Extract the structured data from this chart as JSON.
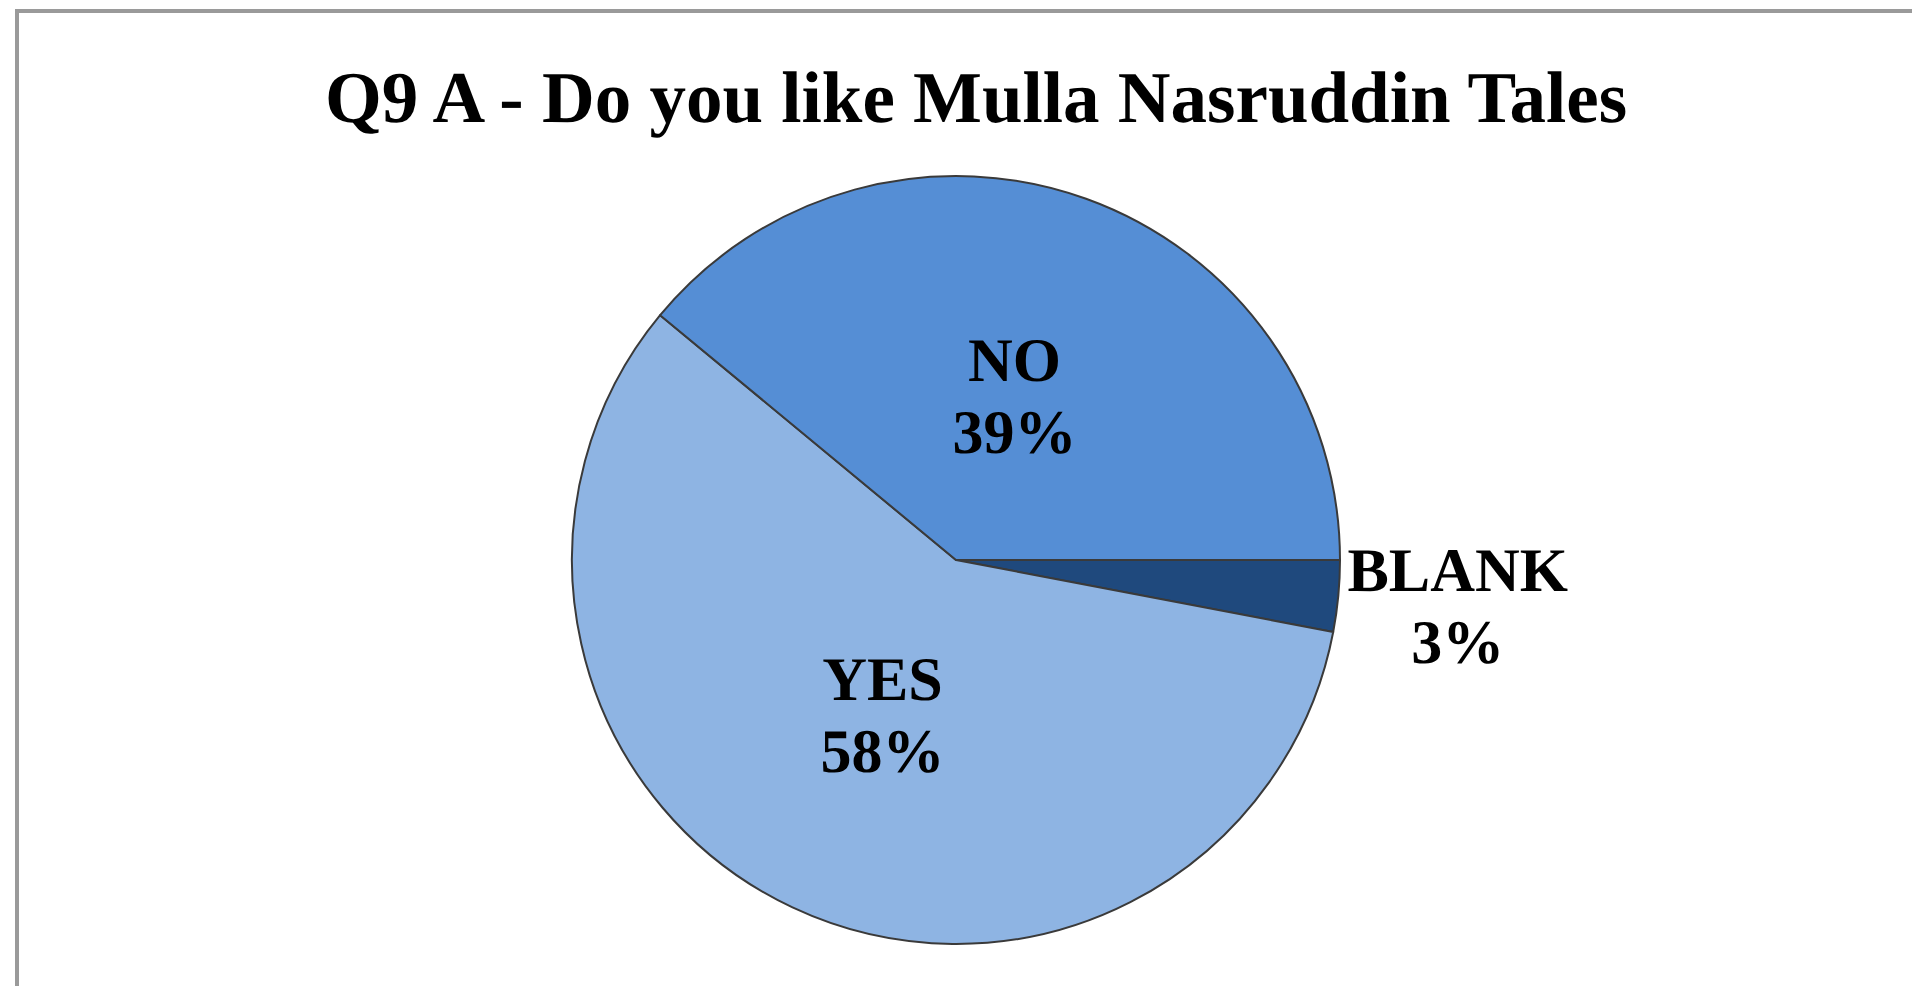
{
  "chart_data": {
    "type": "pie",
    "title": "Q9 A - Do you like Mulla Nasruddin Tales",
    "categories": [
      "BLANK",
      "YES",
      "NO"
    ],
    "values": [
      3,
      58,
      39
    ],
    "colors": [
      "#1f497d",
      "#8eb4e3",
      "#558ed5"
    ],
    "value_labels": [
      "3%",
      "58%",
      "39%"
    ]
  }
}
